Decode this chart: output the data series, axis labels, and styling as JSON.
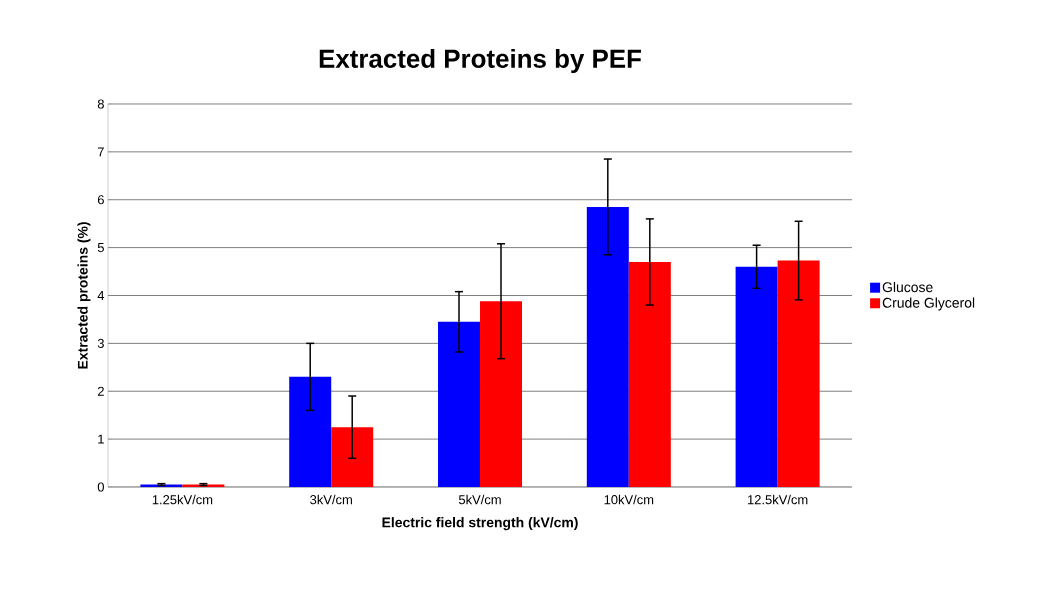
{
  "chart_data": {
    "type": "bar",
    "title": "Extracted Proteins by PEF",
    "xlabel": "Electric field strength (kV/cm)",
    "ylabel": "Extracted proteins (%)",
    "categories": [
      "1.25kV/cm",
      "3kV/cm",
      "5kV/cm",
      "10kV/cm",
      "12.5kV/cm"
    ],
    "series": [
      {
        "name": "Glucose",
        "color": "#0000ff",
        "values": [
          0.05,
          2.3,
          3.45,
          5.85,
          4.6
        ],
        "errors": [
          0.02,
          0.7,
          0.63,
          1.0,
          0.45
        ]
      },
      {
        "name": "Crude Glycerol",
        "color": "#ff0000",
        "values": [
          0.05,
          1.25,
          3.88,
          4.7,
          4.73
        ],
        "errors": [
          0.02,
          0.65,
          1.2,
          0.9,
          0.82
        ]
      }
    ],
    "ylim": [
      0,
      8
    ],
    "yticks": [
      0,
      1,
      2,
      3,
      4,
      5,
      6,
      7,
      8
    ],
    "grid": "y",
    "legend": "right"
  }
}
